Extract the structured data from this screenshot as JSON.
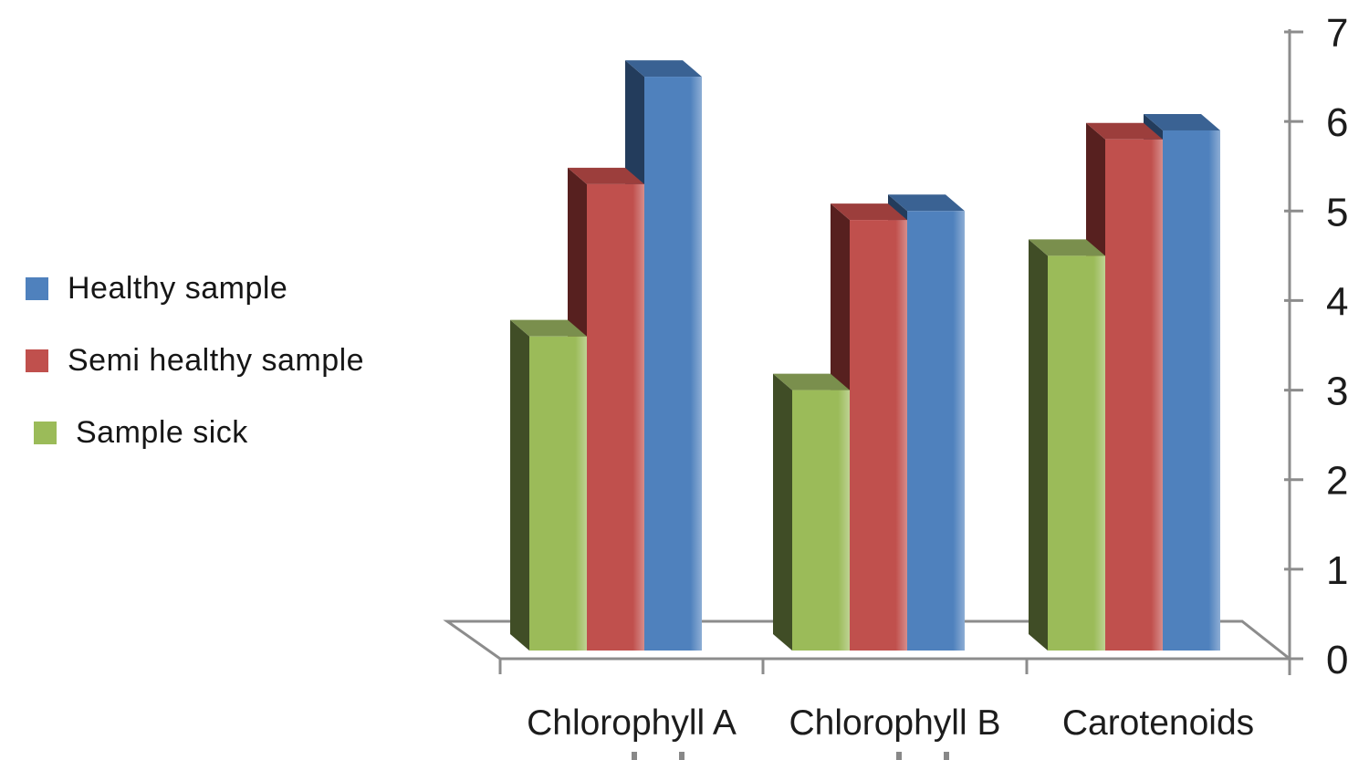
{
  "legend": {
    "items": [
      {
        "label": "Healthy sample",
        "color": "#4F81BD"
      },
      {
        "label": "Semi healthy sample",
        "color": "#C0504D"
      },
      {
        "label": "Sample sick",
        "color": "#9BBB59"
      }
    ]
  },
  "chart_data": {
    "type": "bar",
    "variant": "3d-clustered-column",
    "title": "",
    "xlabel": "",
    "ylabel": "",
    "categories": [
      "Chlorophyll A",
      "Chlorophyll B",
      "Carotenoids"
    ],
    "series": [
      {
        "name": "Sample sick",
        "values": [
          3.6,
          3.0,
          4.5
        ],
        "front_color": "#9BBB59",
        "top_color": "#7A8F4D",
        "side_color": "#404D26"
      },
      {
        "name": "Semi healthy sample",
        "values": [
          5.3,
          4.9,
          5.8
        ],
        "front_color": "#C0504D",
        "top_color": "#9C3E3C",
        "side_color": "#57201F"
      },
      {
        "name": "Healthy sample",
        "values": [
          6.5,
          5.0,
          5.9
        ],
        "front_color": "#4F81BD",
        "top_color": "#3A6293",
        "side_color": "#233C5C"
      }
    ],
    "ylim": [
      0,
      7
    ],
    "yticks": [
      0,
      1,
      2,
      3,
      4,
      5,
      6,
      7
    ],
    "axis_side": "right",
    "grid": false,
    "legend_position": "left",
    "axis_color": "#8C8C8C",
    "text_color": "#1C1C1C",
    "note": "A second text line under the Chlorophyll A and Chlorophyll B category labels is cut off at the bottom edge of the image; only small glyph-top fragments are visible."
  }
}
